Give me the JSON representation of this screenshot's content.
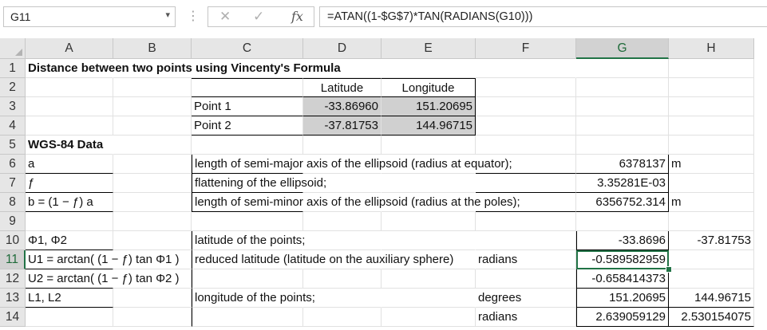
{
  "formula_bar": {
    "name_box": "G11",
    "cancel_icon": "✕",
    "enter_icon": "✓",
    "fx_label": "fx",
    "formula": "=ATAN((1-$G$7)*TAN(RADIANS(G10)))"
  },
  "columns": [
    "A",
    "B",
    "C",
    "D",
    "E",
    "F",
    "G",
    "H"
  ],
  "rows": [
    "1",
    "2",
    "3",
    "4",
    "5",
    "6",
    "7",
    "8",
    "9",
    "10",
    "11",
    "12",
    "13",
    "14"
  ],
  "selected_cell": "G11",
  "cells": {
    "A1": "Distance between two points using Vincenty's Formula",
    "D2": "Latitude",
    "E2": "Longitude",
    "C3": "Point 1",
    "D3": "-33.86960",
    "E3": "151.20695",
    "C4": "Point 2",
    "D4": "-37.81753",
    "E4": "144.96715",
    "A5": "WGS-84 Data",
    "A6": "a",
    "C6": "length of semi-major axis of the ellipsoid (radius at equator);",
    "G6": "6378137",
    "H6": "m",
    "A7": "ƒ",
    "C7": "flattening of the ellipsoid;",
    "G7": "3.35281E-03",
    "A8": "b = (1 − ƒ) a",
    "C8": "length of semi-minor axis of the ellipsoid (radius at the poles);",
    "G8": "6356752.314",
    "H8": "m",
    "A10": "Φ1, Φ2",
    "C10": "latitude of the points;",
    "G10": "-33.8696",
    "H10": "-37.81753",
    "A11": "U1 = arctan( (1 − ƒ) tan Φ1 )",
    "C11": "reduced latitude (latitude on the auxiliary sphere)",
    "F11": "radians",
    "G11": "-0.589582959",
    "A12": "U2 = arctan( (1 − ƒ) tan Φ2 )",
    "G12": "-0.658414373",
    "A13": "L1, L2",
    "C13": "longitude of the points;",
    "F13": "degrees",
    "G13": "151.20695",
    "H13": "144.96715",
    "F14": "radians",
    "G14": "2.639059129",
    "H14": "2.530154075"
  }
}
